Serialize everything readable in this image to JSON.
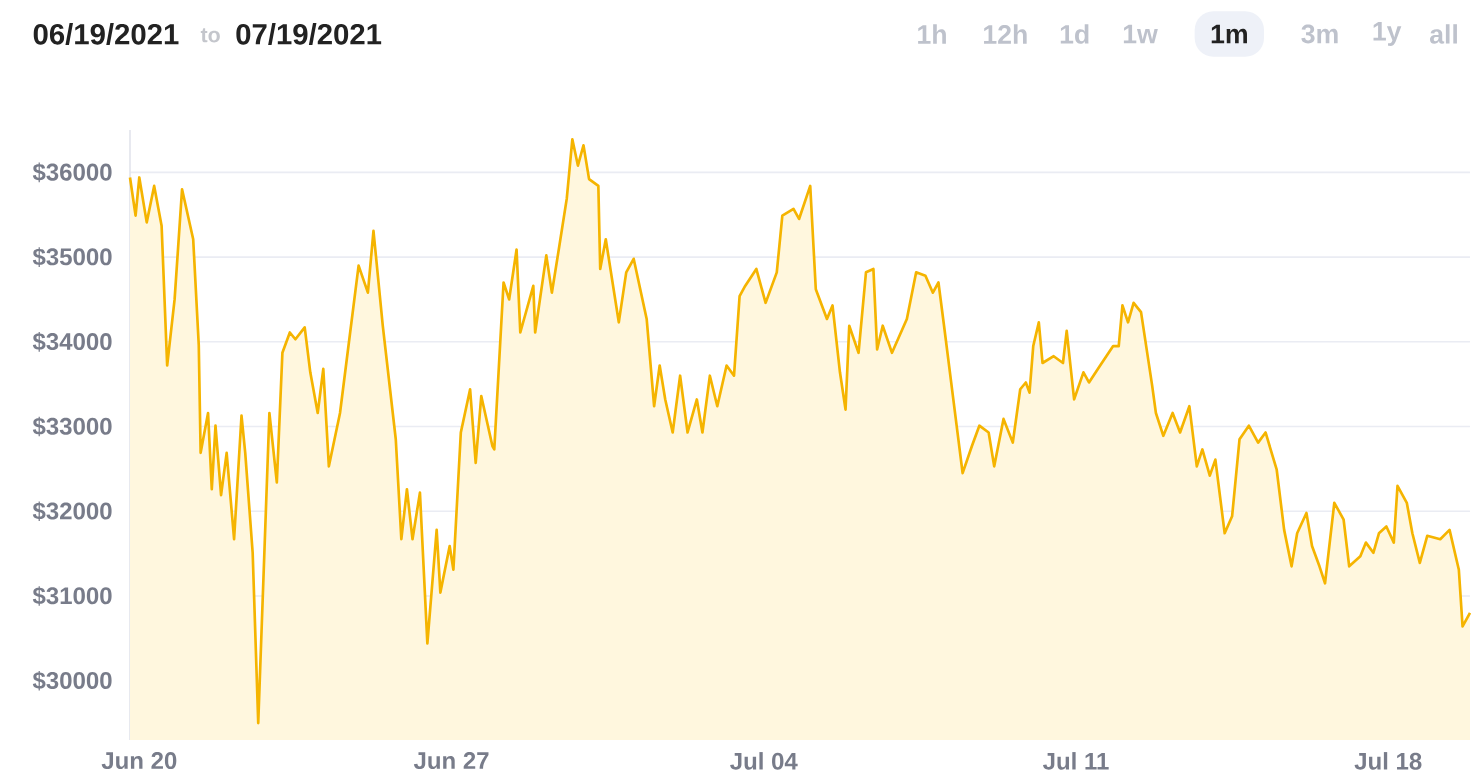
{
  "chart_data": {
    "type": "area",
    "color": "#f5b400",
    "x": [
      "2021-06-19T19:00",
      "2021-06-19T22:00",
      "2021-06-20T00:00",
      "2021-06-20T04:00",
      "2021-06-20T08:00",
      "2021-06-20T12:00",
      "2021-06-20T15:00",
      "2021-06-20T19:00",
      "2021-06-20T23:00",
      "2021-06-21T05:00",
      "2021-06-21T08:00",
      "2021-06-21T09:00",
      "2021-06-21T13:00",
      "2021-06-21T15:00",
      "2021-06-21T17:00",
      "2021-06-21T20:00",
      "2021-06-21T23:00",
      "2021-06-22T03:00",
      "2021-06-22T07:00",
      "2021-06-22T09:00",
      "2021-06-22T13:00",
      "2021-06-22T16:00",
      "2021-06-22T22:00",
      "2021-06-23T02:00",
      "2021-06-23T05:00",
      "2021-06-23T09:00",
      "2021-06-23T12:00",
      "2021-06-23T17:00",
      "2021-06-23T20:00",
      "2021-06-24T00:00",
      "2021-06-24T03:00",
      "2021-06-24T06:00",
      "2021-06-24T12:00",
      "2021-06-24T17:00",
      "2021-06-24T22:00",
      "2021-06-25T03:00",
      "2021-06-25T06:00",
      "2021-06-25T11:00",
      "2021-06-25T18:00",
      "2021-06-25T21:00",
      "2021-06-26T00:00",
      "2021-06-26T03:00",
      "2021-06-26T07:00",
      "2021-06-26T11:00",
      "2021-06-26T16:00",
      "2021-06-26T18:00",
      "2021-06-26T23:00",
      "2021-06-27T01:00",
      "2021-06-27T05:00",
      "2021-06-27T10:00",
      "2021-06-27T13:00",
      "2021-06-27T16:00",
      "2021-06-27T22:00",
      "2021-06-27T23:00",
      "2021-06-28T04:00",
      "2021-06-28T07:00",
      "2021-06-28T11:00",
      "2021-06-28T13:00",
      "2021-06-28T20:00",
      "2021-06-28T21:00",
      "2021-06-29T03:00",
      "2021-06-29T06:00",
      "2021-06-29T10:00",
      "2021-06-29T14:00",
      "2021-06-29T17:00",
      "2021-06-29T20:00",
      "2021-06-29T23:00",
      "2021-06-30T02:00",
      "2021-06-30T07:00",
      "2021-06-30T08:00",
      "2021-06-30T11:00",
      "2021-06-30T18:00",
      "2021-06-30T22:00",
      "2021-07-01T02:00",
      "2021-07-01T09:00",
      "2021-07-01T13:00",
      "2021-07-01T16:00",
      "2021-07-01T19:00",
      "2021-07-01T23:00",
      "2021-07-02T03:00",
      "2021-07-02T07:00",
      "2021-07-02T12:00",
      "2021-07-02T15:00",
      "2021-07-02T19:00",
      "2021-07-02T23:00",
      "2021-07-03T04:00",
      "2021-07-03T08:00",
      "2021-07-03T11:00",
      "2021-07-03T14:00",
      "2021-07-03T20:00",
      "2021-07-04T01:00",
      "2021-07-04T07:00",
      "2021-07-04T10:00",
      "2021-07-04T16:00",
      "2021-07-04T19:00",
      "2021-07-05T01:00",
      "2021-07-05T04:00",
      "2021-07-05T10:00",
      "2021-07-05T13:00",
      "2021-07-05T17:00",
      "2021-07-05T20:00",
      "2021-07-05T22:00",
      "2021-07-06T03:00",
      "2021-07-06T07:00",
      "2021-07-06T11:00",
      "2021-07-06T13:00",
      "2021-07-06T16:00",
      "2021-07-06T21:00",
      "2021-07-07T05:00",
      "2021-07-07T10:00",
      "2021-07-07T15:00",
      "2021-07-07T19:00",
      "2021-07-07T22:00",
      "2021-07-08T01:00",
      "2021-07-08T06:00",
      "2021-07-08T11:00",
      "2021-07-08T16:00",
      "2021-07-08T20:00",
      "2021-07-09T01:00",
      "2021-07-09T04:00",
      "2021-07-09T09:00",
      "2021-07-09T14:00",
      "2021-07-09T18:00",
      "2021-07-09T21:00",
      "2021-07-09T23:00",
      "2021-07-10T01:00",
      "2021-07-10T04:00",
      "2021-07-10T06:00",
      "2021-07-10T12:00",
      "2021-07-10T17:00",
      "2021-07-10T19:00",
      "2021-07-10T23:00",
      "2021-07-11T04:00",
      "2021-07-11T07:00",
      "2021-07-11T13:00",
      "2021-07-11T20:00",
      "2021-07-11T23:00",
      "2021-07-12T01:00",
      "2021-07-12T04:00",
      "2021-07-12T07:00",
      "2021-07-12T11:00",
      "2021-07-12T17:00",
      "2021-07-12T19:00",
      "2021-07-12T23:00",
      "2021-07-13T04:00",
      "2021-07-13T08:00",
      "2021-07-13T13:00",
      "2021-07-13T17:00",
      "2021-07-13T20:00",
      "2021-07-14T00:00",
      "2021-07-14T03:00",
      "2021-07-14T08:00",
      "2021-07-14T12:00",
      "2021-07-14T16:00",
      "2021-07-14T21:00",
      "2021-07-15T02:00",
      "2021-07-15T06:00",
      "2021-07-15T12:00",
      "2021-07-15T16:00",
      "2021-07-15T20:00",
      "2021-07-15T23:00",
      "2021-07-16T04:00",
      "2021-07-16T07:00",
      "2021-07-16T11:00",
      "2021-07-16T14:00",
      "2021-07-16T19:00",
      "2021-07-17T00:00",
      "2021-07-17T03:00",
      "2021-07-17T09:00",
      "2021-07-17T12:00",
      "2021-07-17T16:00",
      "2021-07-17T19:00",
      "2021-07-17T23:00",
      "2021-07-18T03:00",
      "2021-07-18T05:00",
      "2021-07-18T10:00",
      "2021-07-18T13:00",
      "2021-07-18T17:00",
      "2021-07-18T21:00",
      "2021-07-19T04:00",
      "2021-07-19T09:00",
      "2021-07-19T14:00",
      "2021-07-19T16:00",
      "2021-07-19T20:00"
    ],
    "values": [
      35940,
      35490,
      35940,
      35410,
      35840,
      35370,
      33720,
      34500,
      35800,
      35210,
      33960,
      32690,
      33160,
      32260,
      33010,
      32190,
      32690,
      31670,
      33130,
      32690,
      31510,
      29500,
      33160,
      32340,
      33870,
      34110,
      34030,
      34170,
      33640,
      33160,
      33680,
      32530,
      33160,
      34030,
      34900,
      34580,
      35310,
      34190,
      32850,
      31670,
      32260,
      31670,
      32220,
      30440,
      31780,
      31040,
      31590,
      31310,
      32930,
      33440,
      32570,
      33360,
      32770,
      32730,
      34700,
      34500,
      35090,
      34110,
      34660,
      34110,
      35020,
      34580,
      35130,
      35690,
      36390,
      36080,
      36320,
      35920,
      35840,
      34860,
      35210,
      34230,
      34820,
      34980,
      34270,
      33240,
      33720,
      33320,
      32930,
      33600,
      32930,
      33320,
      32930,
      33600,
      33240,
      33720,
      33600,
      34540,
      34660,
      34860,
      34460,
      34820,
      35490,
      35570,
      35450,
      35840,
      34620,
      34270,
      34430,
      33640,
      33200,
      34190,
      33870,
      34820,
      34860,
      33910,
      34190,
      33870,
      34270,
      34820,
      34780,
      34580,
      34700,
      34190,
      33320,
      32450,
      32770,
      33010,
      32930,
      32530,
      33090,
      32810,
      33440,
      33520,
      33400,
      33950,
      34230,
      33750,
      33830,
      33750,
      34130,
      33320,
      33640,
      33520,
      33720,
      33950,
      33950,
      34430,
      34230,
      34460,
      34350,
      33480,
      33160,
      32890,
      33160,
      32930,
      33240,
      32530,
      32730,
      32420,
      32610,
      31740,
      31940,
      32850,
      33010,
      32810,
      32930,
      32490,
      31780,
      31350,
      31740,
      31980,
      31590,
      31350,
      31150,
      32100,
      31900,
      31350,
      31470,
      31630,
      31510,
      31740,
      31820,
      31630,
      32300,
      32100,
      31740,
      31390,
      31710,
      31670,
      31780,
      31310,
      30640,
      30800
    ],
    "xlim": [
      "2021-06-19T19:00",
      "2021-07-19T20:00"
    ],
    "xticks": [
      {
        "value": "2021-06-20",
        "label": "Jun 20"
      },
      {
        "value": "2021-06-27",
        "label": "Jun 27"
      },
      {
        "value": "2021-07-04",
        "label": "Jul 04"
      },
      {
        "value": "2021-07-11",
        "label": "Jul 11"
      },
      {
        "value": "2021-07-18",
        "label": "Jul 18"
      }
    ],
    "yticks": [
      {
        "value": 30000,
        "label": "$30000"
      },
      {
        "value": 31000,
        "label": "$31000"
      },
      {
        "value": 32000,
        "label": "$32000"
      },
      {
        "value": 33000,
        "label": "$33000"
      },
      {
        "value": 34000,
        "label": "$34000"
      },
      {
        "value": 35000,
        "label": "$35000"
      },
      {
        "value": 36000,
        "label": "$36000"
      }
    ],
    "ylim": [
      29300,
      36500
    ],
    "grid": "y",
    "annotations": [
      "06/19/2021",
      "to",
      "07/19/2021",
      "1h",
      "12h",
      "1d",
      "1w",
      "1m",
      "3m",
      "1y",
      "all"
    ]
  }
}
